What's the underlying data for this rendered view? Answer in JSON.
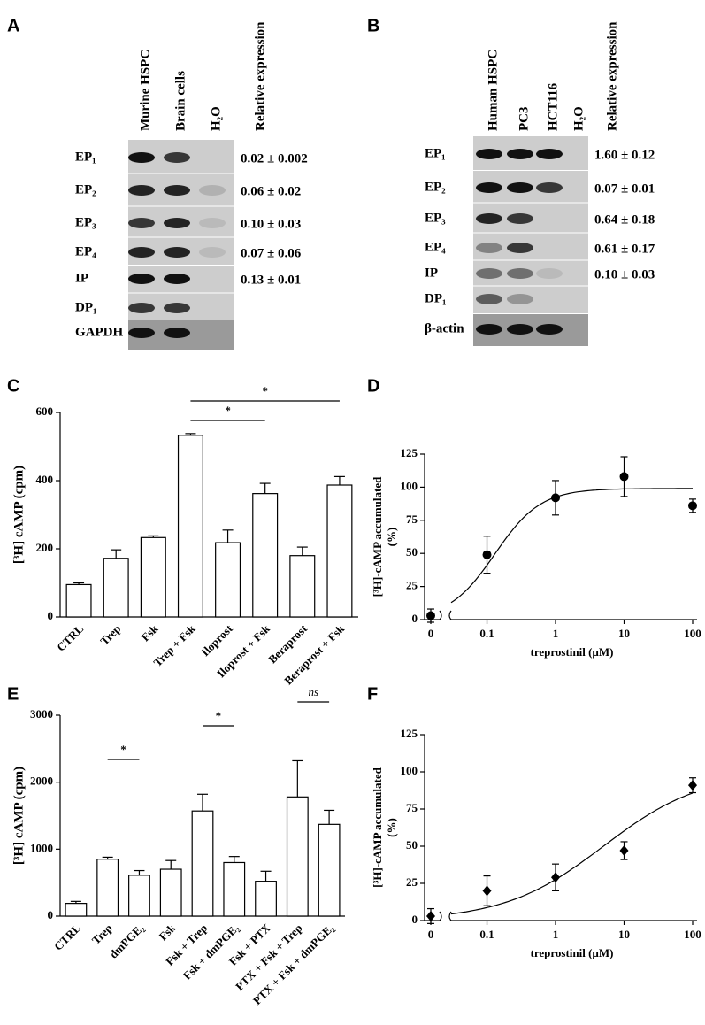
{
  "gels": [
    {
      "panel": "A",
      "lanes": [
        "Murine HSPC",
        "Brain cells",
        "H₂O"
      ],
      "header": "Relative expression",
      "rows": [
        {
          "label": "EP₁",
          "expression": "0.02 ± 0.002"
        },
        {
          "label": "EP₂",
          "expression": "0.06 ± 0.02"
        },
        {
          "label": "EP₃",
          "expression": "0.10 ± 0.03"
        },
        {
          "label": "EP₄",
          "expression": "0.07 ± 0.06"
        },
        {
          "label": "IP",
          "expression": "0.13 ± 0.01"
        },
        {
          "label": "DP₁"
        },
        {
          "label": "GAPDH"
        }
      ]
    },
    {
      "panel": "B",
      "lanes": [
        "Human HSPC",
        "PC3",
        "HCT116",
        "H₂O"
      ],
      "header": "Relative expression",
      "rows": [
        {
          "label": "EP₁",
          "expression": "1.60 ± 0.12"
        },
        {
          "label": "EP₂",
          "expression": "0.07 ± 0.01"
        },
        {
          "label": "EP₃",
          "expression": "0.64 ± 0.18"
        },
        {
          "label": "EP₄",
          "expression": "0.61 ± 0.17"
        },
        {
          "label": "IP",
          "expression": "0.10 ± 0.03"
        },
        {
          "label": "DP₁"
        },
        {
          "label": "β-actin"
        }
      ]
    }
  ],
  "chart_data": [
    {
      "type": "bar",
      "panel": "C",
      "ylabel": "[³H] cAMP (cpm)",
      "categories": [
        "CTRL",
        "Trep",
        "Fsk",
        "Trep + Fsk",
        "Iloprost",
        "Iloprost + Fsk",
        "Beraprost",
        "Beraprost + Fsk"
      ],
      "values": [
        95,
        172,
        233,
        533,
        218,
        362,
        180,
        387
      ],
      "errors": [
        5,
        25,
        5,
        5,
        37,
        30,
        25,
        25
      ],
      "color": "#ffffff",
      "ylim": [
        0,
        600
      ],
      "yticks": [
        0,
        200,
        400,
        600
      ],
      "annotations": [
        {
          "text": "*",
          "between": [
            3,
            5
          ]
        },
        {
          "text": "*",
          "between": [
            3,
            7
          ]
        }
      ]
    },
    {
      "type": "scatter",
      "panel": "D",
      "ylabel": [
        "[³H]-cAMP accumulated",
        "(%)"
      ],
      "xlabel": "treprostinil (µM)",
      "x": [
        0,
        0.1,
        1,
        10,
        100
      ],
      "values": [
        3,
        49,
        92,
        108,
        86
      ],
      "errors": [
        5,
        14,
        13,
        15,
        5
      ],
      "marker": "circle",
      "color": "#000000",
      "xscale": "log",
      "axis_break": true,
      "xlim": [
        0.03,
        100
      ],
      "xticks": [
        0,
        0.1,
        1,
        10,
        100
      ],
      "ylim": [
        0,
        125
      ],
      "yticks": [
        0,
        25,
        50,
        75,
        100,
        125
      ],
      "curve": {
        "bottom": 0,
        "top": 99,
        "ec50": 0.13,
        "hill": 1.3
      }
    },
    {
      "type": "bar",
      "panel": "E",
      "ylabel": "[³H] cAMP (cpm)",
      "categories": [
        "CTRL",
        "Trep",
        "dmPGE₂",
        "Fsk",
        "Fsk + Trep",
        "Fsk + dmPGE₂",
        "Fsk + PTX",
        "PTX + Fsk + Trep",
        "PTX + Fsk + dmPGE₂"
      ],
      "values": [
        190,
        850,
        610,
        700,
        1570,
        800,
        520,
        1780,
        1370
      ],
      "errors": [
        30,
        30,
        70,
        130,
        250,
        90,
        150,
        540,
        210
      ],
      "color": "#ffffff",
      "ylim": [
        0,
        3000
      ],
      "yticks": [
        0,
        1000,
        2000,
        3000
      ],
      "annotations": [
        {
          "text": "*",
          "between": [
            1,
            2
          ]
        },
        {
          "text": "*",
          "between": [
            4,
            5
          ]
        },
        {
          "text": "ns",
          "between": [
            7,
            8
          ],
          "style": "italic"
        }
      ]
    },
    {
      "type": "scatter",
      "panel": "F",
      "ylabel": [
        "[³H]-cAMP accumulated",
        "(%)"
      ],
      "xlabel": "treprostinil (µM)",
      "x": [
        0,
        0.1,
        1,
        10,
        100
      ],
      "values": [
        3,
        20,
        29,
        47,
        91
      ],
      "errors": [
        5,
        10,
        9,
        6,
        5
      ],
      "marker": "diamond",
      "color": "#000000",
      "xscale": "log",
      "axis_break": true,
      "xlim": [
        0.03,
        100
      ],
      "xticks": [
        0,
        0.1,
        1,
        10,
        100
      ],
      "ylim": [
        0,
        125
      ],
      "yticks": [
        0,
        25,
        50,
        75,
        100,
        125
      ],
      "curve": {
        "bottom": 0,
        "top": 100,
        "ec50": 5,
        "hill": 0.6
      }
    }
  ]
}
